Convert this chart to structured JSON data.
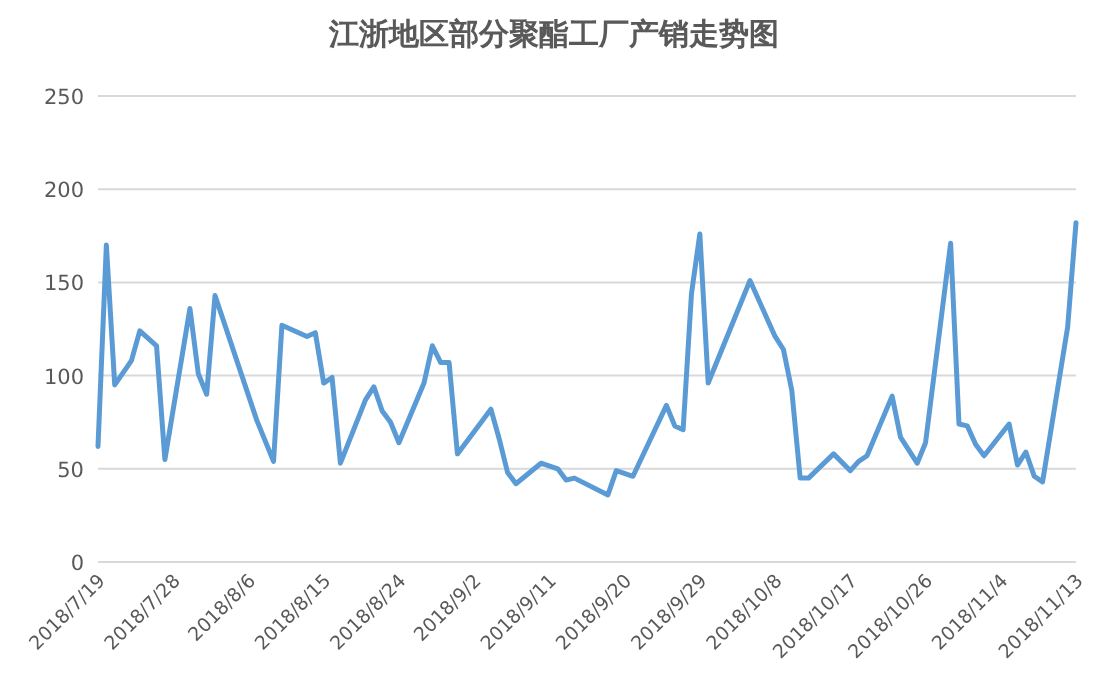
{
  "chart_data": {
    "type": "line",
    "title": "江浙地区部分聚酯工厂产销走势图",
    "grid": "y",
    "xlim": [
      "2018-07-19",
      "2018-11-13"
    ],
    "xticks": [
      {
        "value": "2018-07-19",
        "label": "2018/7/19"
      },
      {
        "value": "2018-07-28",
        "label": "2018/7/28"
      },
      {
        "value": "2018-08-06",
        "label": "2018/8/6"
      },
      {
        "value": "2018-08-15",
        "label": "2018/8/15"
      },
      {
        "value": "2018-08-24",
        "label": "2018/8/24"
      },
      {
        "value": "2018-09-02",
        "label": "2018/9/2"
      },
      {
        "value": "2018-09-11",
        "label": "2018/9/11"
      },
      {
        "value": "2018-09-20",
        "label": "2018/9/20"
      },
      {
        "value": "2018-09-29",
        "label": "2018/9/29"
      },
      {
        "value": "2018-10-08",
        "label": "2018/10/8"
      },
      {
        "value": "2018-10-17",
        "label": "2018/10/17"
      },
      {
        "value": "2018-10-26",
        "label": "2018/10/26"
      },
      {
        "value": "2018-11-04",
        "label": "2018/11/4"
      },
      {
        "value": "2018-11-13",
        "label": "2018/11/13"
      }
    ],
    "ylim": [
      0,
      250
    ],
    "yticks": [
      0,
      50,
      100,
      150,
      200,
      250
    ],
    "x": [
      "2018-07-19",
      "2018-07-20",
      "2018-07-21",
      "2018-07-23",
      "2018-07-24",
      "2018-07-26",
      "2018-07-27",
      "2018-07-30",
      "2018-07-31",
      "2018-08-01",
      "2018-08-02",
      "2018-08-07",
      "2018-08-09",
      "2018-08-10",
      "2018-08-13",
      "2018-08-14",
      "2018-08-15",
      "2018-08-16",
      "2018-08-17",
      "2018-08-20",
      "2018-08-21",
      "2018-08-22",
      "2018-08-23",
      "2018-08-24",
      "2018-08-27",
      "2018-08-28",
      "2018-08-29",
      "2018-08-30",
      "2018-08-31",
      "2018-09-04",
      "2018-09-05",
      "2018-09-06",
      "2018-09-07",
      "2018-09-10",
      "2018-09-12",
      "2018-09-13",
      "2018-09-14",
      "2018-09-18",
      "2018-09-19",
      "2018-09-21",
      "2018-09-25",
      "2018-09-26",
      "2018-09-27",
      "2018-09-28",
      "2018-09-29",
      "2018-09-30",
      "2018-10-05",
      "2018-10-08",
      "2018-10-09",
      "2018-10-10",
      "2018-10-11",
      "2018-10-12",
      "2018-10-15",
      "2018-10-17",
      "2018-10-18",
      "2018-10-19",
      "2018-10-22",
      "2018-10-23",
      "2018-10-25",
      "2018-10-26",
      "2018-10-29",
      "2018-10-30",
      "2018-10-31",
      "2018-11-01",
      "2018-11-02",
      "2018-11-05",
      "2018-11-06",
      "2018-11-07",
      "2018-11-08",
      "2018-11-09",
      "2018-11-12",
      "2018-11-13"
    ],
    "series": [
      {
        "color": "#5b9bd5",
        "values": [
          62,
          170,
          95,
          108,
          124,
          116,
          55,
          136,
          101,
          90,
          143,
          76,
          54,
          127,
          121,
          123,
          96,
          99,
          53,
          87,
          94,
          81,
          75,
          64,
          96,
          116,
          107,
          107,
          58,
          82,
          66,
          48,
          42,
          53,
          50,
          44,
          45,
          36,
          49,
          46,
          84,
          73,
          71,
          144,
          176,
          96,
          151,
          121,
          114,
          92,
          45,
          45,
          58,
          49,
          54,
          57,
          89,
          67,
          53,
          64,
          171,
          74,
          73,
          63,
          57,
          74,
          52,
          59,
          46,
          43,
          126,
          182
        ]
      }
    ]
  }
}
